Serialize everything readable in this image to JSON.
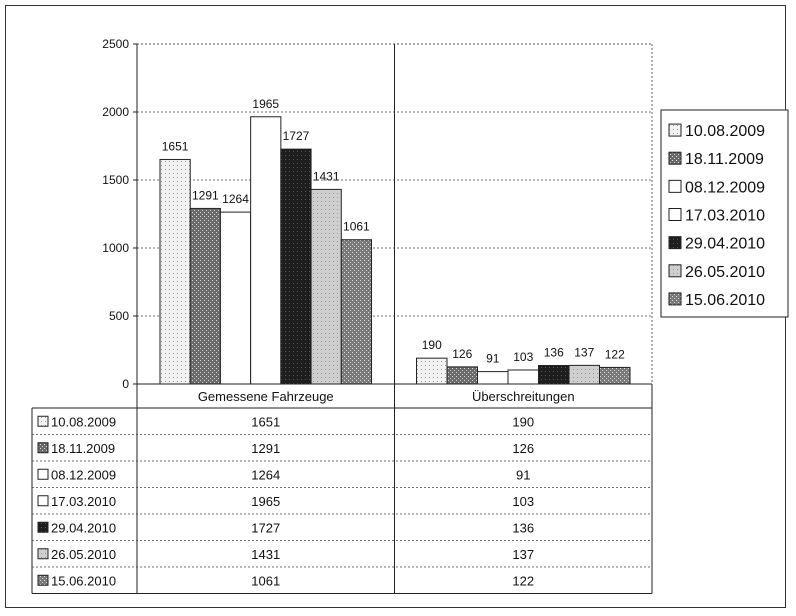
{
  "chart_data": {
    "type": "bar",
    "categories": [
      "Gemessene Fahrzeuge",
      "Überschreitungen"
    ],
    "series": [
      {
        "name": "10.08.2009",
        "values": [
          1651,
          190
        ],
        "color": "#f2f2f2",
        "pattern": "light-dots"
      },
      {
        "name": "18.11.2009",
        "values": [
          1291,
          126
        ],
        "color": "#6a6a6a",
        "pattern": "dark-dots"
      },
      {
        "name": "08.12.2009",
        "values": [
          1264,
          91
        ],
        "color": "#ffffff",
        "pattern": "none"
      },
      {
        "name": "17.03.2010",
        "values": [
          1965,
          103
        ],
        "color": "#ffffff",
        "pattern": "none"
      },
      {
        "name": "29.04.2010",
        "values": [
          1727,
          136
        ],
        "color": "#1e1e1e",
        "pattern": "dense-dark"
      },
      {
        "name": "26.05.2010",
        "values": [
          1431,
          137
        ],
        "color": "#cfcfcf",
        "pattern": "light-dots"
      },
      {
        "name": "15.06.2010",
        "values": [
          1061,
          122
        ],
        "color": "#7a7a7a",
        "pattern": "dark-dots"
      }
    ],
    "y_ticks": [
      "0",
      "500",
      "1000",
      "1500",
      "2000",
      "2500"
    ],
    "ylim": [
      0,
      2500
    ],
    "grid": true,
    "legend": "right",
    "data_table": true
  }
}
